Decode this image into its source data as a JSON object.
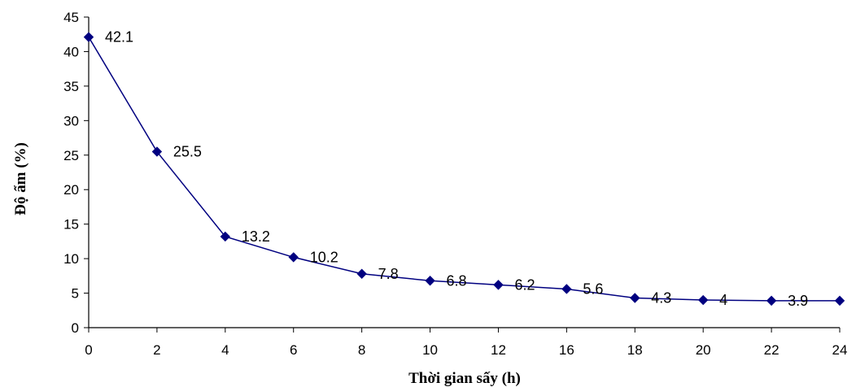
{
  "chart_data": {
    "type": "line",
    "title": "",
    "xlabel": "Thời gian sấy (h)",
    "ylabel": "Độ ẩm (%)",
    "categories": [
      "0",
      "2",
      "4",
      "6",
      "8",
      "10",
      "12",
      "16",
      "18",
      "20",
      "22",
      "24"
    ],
    "series": [
      {
        "values": [
          42.1,
          25.5,
          13.2,
          10.2,
          7.8,
          6.8,
          6.2,
          5.6,
          4.3,
          4,
          3.9,
          3.9
        ],
        "labels": [
          "42.1",
          "25.5",
          "13.2",
          "10.2",
          "7.8",
          "6.8",
          "6.2",
          "5.6",
          "4.3",
          "4",
          "3.9",
          "3.9"
        ],
        "color": "#000080"
      }
    ],
    "ylim": [
      0,
      45
    ],
    "yticks": [
      "0",
      "5",
      "10",
      "15",
      "20",
      "25",
      "30",
      "35",
      "40",
      "45"
    ],
    "grid": false,
    "legend": "none"
  }
}
